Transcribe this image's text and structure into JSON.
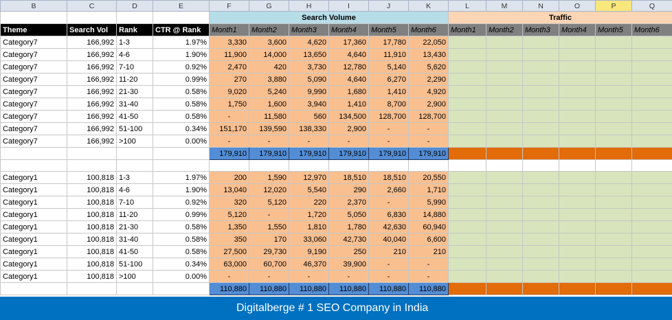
{
  "column_letters": [
    "B",
    "C",
    "D",
    "E",
    "F",
    "G",
    "H",
    "I",
    "J",
    "K",
    "L",
    "M",
    "N",
    "O",
    "P",
    "Q"
  ],
  "active_column": "P",
  "group_headers": {
    "search_volume": "Search Volume",
    "traffic": "Traffic"
  },
  "headers": {
    "theme": "Theme",
    "search_vol": "Search Vol",
    "rank": "Rank",
    "ctr": "CTR @ Rank"
  },
  "months": [
    "Month1",
    "Month2",
    "Month3",
    "Month4",
    "Month5",
    "Month6"
  ],
  "traffic_months": [
    "Month1",
    "Month2",
    "Month3",
    "Month4",
    "Month5",
    "Month6"
  ],
  "blocks": [
    {
      "rows": [
        {
          "theme": "Category7",
          "vol": "166,992",
          "rank": "1-3",
          "ctr": "1.97%",
          "m": [
            "3,330",
            "3,600",
            "4,620",
            "17,360",
            "17,780",
            "22,050"
          ]
        },
        {
          "theme": "Category7",
          "vol": "166,992",
          "rank": "4-6",
          "ctr": "1.90%",
          "m": [
            "11,900",
            "14,000",
            "13,650",
            "4,640",
            "11,910",
            "13,430"
          ]
        },
        {
          "theme": "Category7",
          "vol": "166,992",
          "rank": "7-10",
          "ctr": "0.92%",
          "m": [
            "2,470",
            "420",
            "3,730",
            "12,780",
            "5,140",
            "5,620"
          ]
        },
        {
          "theme": "Category7",
          "vol": "166,992",
          "rank": "11-20",
          "ctr": "0.99%",
          "m": [
            "270",
            "3,880",
            "5,090",
            "4,640",
            "6,270",
            "2,290"
          ]
        },
        {
          "theme": "Category7",
          "vol": "166,992",
          "rank": "21-30",
          "ctr": "0.58%",
          "m": [
            "9,020",
            "5,240",
            "9,990",
            "1,680",
            "1,410",
            "4,920"
          ]
        },
        {
          "theme": "Category7",
          "vol": "166,992",
          "rank": "31-40",
          "ctr": "0.58%",
          "m": [
            "1,750",
            "1,600",
            "3,940",
            "1,410",
            "8,700",
            "2,900"
          ]
        },
        {
          "theme": "Category7",
          "vol": "166,992",
          "rank": "41-50",
          "ctr": "0.58%",
          "m": [
            "-",
            "11,580",
            "560",
            "134,500",
            "128,700",
            "128,700"
          ]
        },
        {
          "theme": "Category7",
          "vol": "166,992",
          "rank": "51-100",
          "ctr": "0.34%",
          "m": [
            "151,170",
            "139,590",
            "138,330",
            "2,900",
            "-",
            "-"
          ]
        },
        {
          "theme": "Category7",
          "vol": "166,992",
          "rank": ">100",
          "ctr": "0.00%",
          "m": [
            "-",
            "-",
            "-",
            "-",
            "-",
            "-"
          ]
        }
      ],
      "totals": [
        "179,910",
        "179,910",
        "179,910",
        "179,910",
        "179,910",
        "179,910"
      ]
    },
    {
      "rows": [
        {
          "theme": "Category1",
          "vol": "100,818",
          "rank": "1-3",
          "ctr": "1.97%",
          "m": [
            "200",
            "1,590",
            "12,970",
            "18,510",
            "18,510",
            "20,550"
          ]
        },
        {
          "theme": "Category1",
          "vol": "100,818",
          "rank": "4-6",
          "ctr": "1.90%",
          "m": [
            "13,040",
            "12,020",
            "5,540",
            "290",
            "2,660",
            "1,710"
          ]
        },
        {
          "theme": "Category1",
          "vol": "100,818",
          "rank": "7-10",
          "ctr": "0.92%",
          "m": [
            "320",
            "5,120",
            "220",
            "2,370",
            "-",
            "5,990"
          ]
        },
        {
          "theme": "Category1",
          "vol": "100,818",
          "rank": "11-20",
          "ctr": "0.99%",
          "m": [
            "5,120",
            "-",
            "1,720",
            "5,050",
            "6,830",
            "14,880"
          ]
        },
        {
          "theme": "Category1",
          "vol": "100,818",
          "rank": "21-30",
          "ctr": "0.58%",
          "m": [
            "1,350",
            "1,550",
            "1,810",
            "1,780",
            "42,630",
            "60,940"
          ]
        },
        {
          "theme": "Category1",
          "vol": "100,818",
          "rank": "31-40",
          "ctr": "0.58%",
          "m": [
            "350",
            "170",
            "33,060",
            "42,730",
            "40,040",
            "6,600"
          ]
        },
        {
          "theme": "Category1",
          "vol": "100,818",
          "rank": "41-50",
          "ctr": "0.58%",
          "m": [
            "27,500",
            "29,730",
            "9,190",
            "250",
            "210",
            "210"
          ]
        },
        {
          "theme": "Category1",
          "vol": "100,818",
          "rank": "51-100",
          "ctr": "0.34%",
          "m": [
            "63,000",
            "60,700",
            "46,370",
            "39,900",
            "-",
            "-"
          ]
        },
        {
          "theme": "Category1",
          "vol": "100,818",
          "rank": ">100",
          "ctr": "0.00%",
          "m": [
            "-",
            "-",
            "-",
            "-",
            "-",
            "-"
          ]
        }
      ],
      "totals": [
        "110,880",
        "110,880",
        "110,880",
        "110,880",
        "110,880",
        "110,880"
      ]
    }
  ],
  "footer_text": "Digitalberge # 1 SEO Company in India",
  "colors": {
    "search_header": "#b7dde8",
    "traffic_header": "#fcd5b4",
    "month_cell": "#fabf8f",
    "traffic_cell": "#d8e4bc",
    "total_blue": "#538dd5",
    "total_orange": "#e26b0a",
    "footer": "#0070c0"
  }
}
